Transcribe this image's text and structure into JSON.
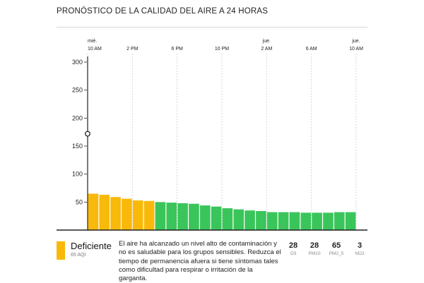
{
  "title": "PRONÓSTICO DE LA CALIDAD DEL AIRE A 24 HORAS",
  "colors": {
    "moderate": "#f9b90a",
    "good": "#3ac55b",
    "axis": "#222222",
    "grid": "#cccccc"
  },
  "chart_data": {
    "type": "bar",
    "ylim": [
      0,
      300
    ],
    "y_ticks": [
      50,
      100,
      150,
      200,
      250,
      300
    ],
    "y_tick_labels": [
      "50",
      "100",
      "150",
      "200",
      "250",
      "300"
    ],
    "x_ticks": [
      {
        "day": "mié.",
        "time": "10 AM",
        "hour_index": 0
      },
      {
        "day": "",
        "time": "2 PM",
        "hour_index": 4
      },
      {
        "day": "",
        "time": "6 PM",
        "hour_index": 8
      },
      {
        "day": "",
        "time": "10 PM",
        "hour_index": 12
      },
      {
        "day": "jue.",
        "time": "2 AM",
        "hour_index": 16
      },
      {
        "day": "",
        "time": "6 AM",
        "hour_index": 20
      },
      {
        "day": "jue.",
        "time": "10 AM",
        "hour_index": 24
      }
    ],
    "hours": 24,
    "values": [
      65,
      63,
      59,
      56,
      53,
      52,
      50,
      49,
      48,
      47,
      44,
      42,
      39,
      37,
      35,
      34,
      32,
      32,
      32,
      31,
      31,
      31,
      32,
      32
    ],
    "categories": [
      "moderate",
      "moderate",
      "moderate",
      "moderate",
      "moderate",
      "moderate",
      "good",
      "good",
      "good",
      "good",
      "good",
      "good",
      "good",
      "good",
      "good",
      "good",
      "good",
      "good",
      "good",
      "good",
      "good",
      "good",
      "good",
      "good"
    ],
    "current_marker_value": 172
  },
  "footer": {
    "category_label": "Deficiente",
    "aqi_label": "65 AQI",
    "description": "El aire ha alcanzado un nivel alto de contaminación y no es saludable para los grupos sensibles. Reduzca el tiempo de permanencia afuera si tiene síntomas tales como dificultad para respirar o irritación de la garganta.",
    "pollutants": [
      {
        "value": "28",
        "name": "O3"
      },
      {
        "value": "28",
        "name": "PM10"
      },
      {
        "value": "65",
        "name": "PM2_5"
      },
      {
        "value": "3",
        "name": "NO2"
      }
    ]
  }
}
